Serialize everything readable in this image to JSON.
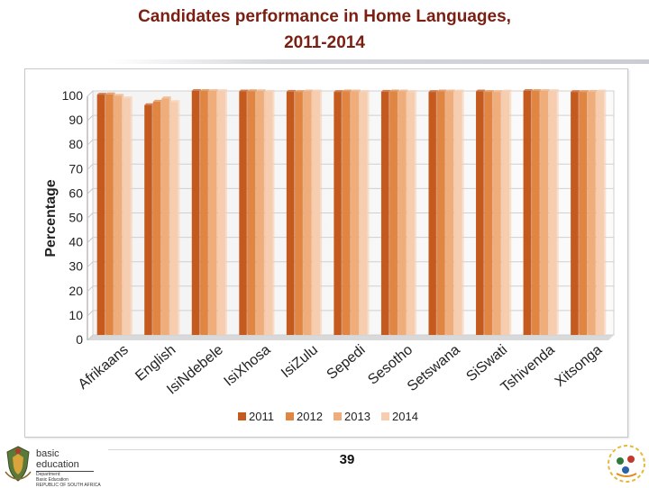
{
  "header": {
    "title_line1": "Candidates performance in Home Languages,",
    "title_line2": "2011-2014"
  },
  "footer": {
    "page_number": "39",
    "brand_name": "basic education",
    "brand_line1": "Department:",
    "brand_line2": "Basic Education",
    "brand_line3": "REPUBLIC OF SOUTH AFRICA"
  },
  "chart_data": {
    "type": "bar",
    "title": "",
    "xlabel": "",
    "ylabel": "Percentage",
    "ylim": [
      0,
      100
    ],
    "yticks": [
      0,
      10,
      20,
      30,
      40,
      50,
      60,
      70,
      80,
      90,
      100
    ],
    "grid": true,
    "legend_position": "bottom",
    "categories": [
      "Afrikaans",
      "English",
      "IsiNdebele",
      "IsiXhosa",
      "IsiZulu",
      "Sepedi",
      "Sesotho",
      "Setswana",
      "SiSwati",
      "Tshivenda",
      "Xitsonga"
    ],
    "series": [
      {
        "name": "2011",
        "color": "#c55a1f",
        "values": [
          98.5,
          94.2,
          100,
          99.8,
          99.7,
          99.6,
          99.7,
          99.6,
          99.8,
          100,
          99.6
        ]
      },
      {
        "name": "2012",
        "color": "#e08542",
        "values": [
          98.6,
          95.6,
          100,
          99.9,
          99.6,
          99.8,
          99.8,
          99.8,
          99.6,
          100,
          99.6
        ]
      },
      {
        "name": "2013",
        "color": "#f0ad7c",
        "values": [
          98.0,
          97.0,
          100,
          99.9,
          99.8,
          99.8,
          99.8,
          99.8,
          99.6,
          100,
          99.7
        ]
      },
      {
        "name": "2014",
        "color": "#f7cdb0",
        "values": [
          97.0,
          95.5,
          100,
          99.7,
          99.8,
          99.6,
          99.6,
          99.8,
          99.8,
          100,
          99.8
        ]
      }
    ]
  }
}
